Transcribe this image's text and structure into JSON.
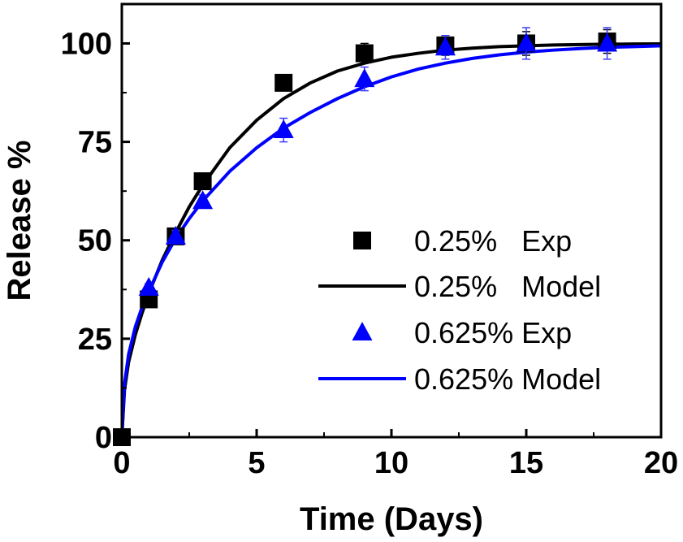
{
  "chart_data": {
    "type": "scatter",
    "xlabel": "Time (Days)",
    "ylabel": "Release %",
    "xlim": [
      0,
      20
    ],
    "ylim": [
      0,
      110
    ],
    "x_ticks": [
      "0",
      "5",
      "10",
      "15",
      "20"
    ],
    "y_ticks": [
      "0",
      "25",
      "50",
      "75",
      "100"
    ],
    "grid": false,
    "legend_position": "bottom-right",
    "series": [
      {
        "name": "0.25%   Exp",
        "kind": "points",
        "marker": "square",
        "color": "#000000",
        "x": [
          0,
          1,
          2,
          3,
          6,
          9,
          12,
          15,
          18
        ],
        "y": [
          0,
          35,
          51,
          65,
          90,
          97.5,
          99.5,
          100,
          100.5
        ],
        "error": [
          0,
          1,
          1.5,
          1.5,
          1.5,
          2.5,
          2.5,
          3,
          3
        ]
      },
      {
        "name": "0.25%   Model",
        "kind": "line",
        "color": "#000000",
        "x": [
          0,
          0.1,
          0.25,
          0.5,
          0.75,
          1,
          1.5,
          2,
          2.5,
          3,
          4,
          5,
          6,
          7,
          8,
          9,
          10,
          11,
          12,
          13,
          14,
          15,
          16,
          17,
          18,
          19,
          20
        ],
        "y": [
          0,
          12,
          19,
          26,
          31.5,
          36.5,
          45,
          52,
          58.5,
          64,
          73.5,
          80.5,
          86,
          90,
          93,
          95,
          96.5,
          97.5,
          98.3,
          98.8,
          99.2,
          99.4,
          99.6,
          99.7,
          99.8,
          99.85,
          99.9
        ]
      },
      {
        "name": "0.625% Exp",
        "kind": "points",
        "marker": "triangle",
        "color": "#0000ff",
        "x": [
          1,
          2,
          3,
          6,
          9,
          12,
          15,
          18
        ],
        "y": [
          38,
          51,
          60,
          78,
          91,
          99,
          100,
          100
        ],
        "error": [
          1,
          1.5,
          1.5,
          3,
          3,
          3,
          4,
          4
        ]
      },
      {
        "name": "0.625% Model",
        "kind": "line",
        "color": "#0000ff",
        "x": [
          0,
          0.1,
          0.25,
          0.5,
          0.75,
          1,
          1.5,
          2,
          2.5,
          3,
          4,
          5,
          6,
          7,
          8,
          9,
          10,
          11,
          12,
          13,
          14,
          15,
          16,
          17,
          18,
          19,
          20
        ],
        "y": [
          0,
          13.5,
          21,
          28,
          33,
          37,
          44.5,
          50.5,
          55.5,
          60,
          67.5,
          73.5,
          78.5,
          82.5,
          86,
          89,
          91.5,
          93.5,
          95,
          96.2,
          97.1,
          97.8,
          98.3,
          98.7,
          99,
          99.2,
          99.4
        ]
      }
    ]
  }
}
